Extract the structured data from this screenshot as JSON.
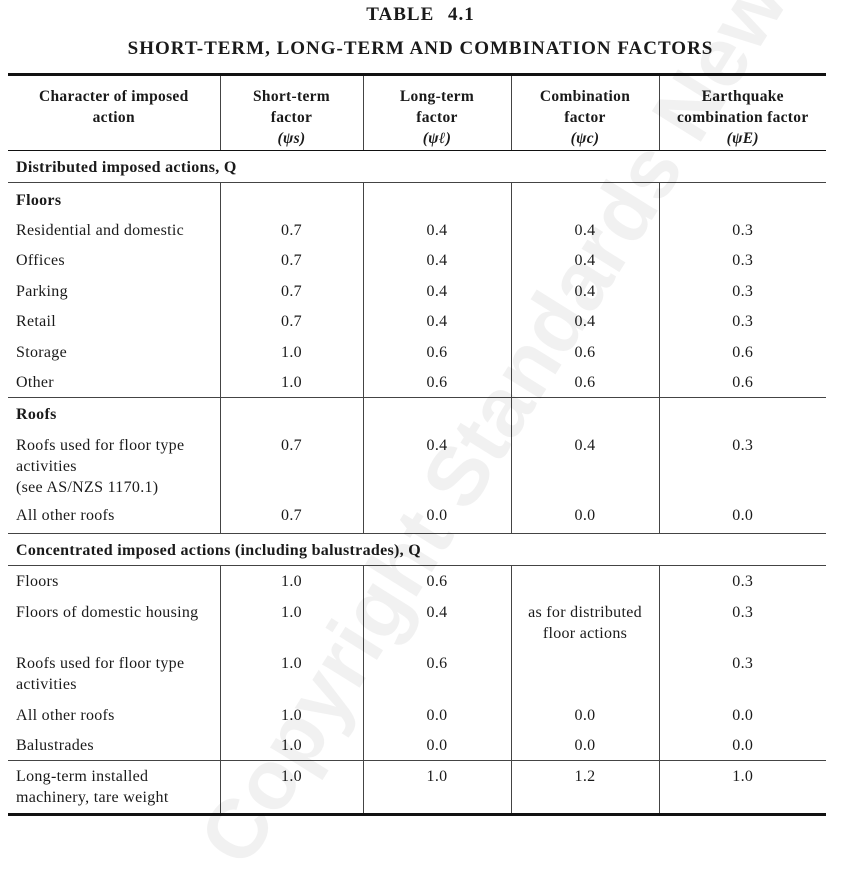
{
  "table_label": "TABLE 4.1",
  "title": "SHORT-TERM, LONG-TERM AND COMBINATION FACTORS",
  "headers": [
    {
      "line1": "Character of imposed",
      "line2": "action",
      "line3": ""
    },
    {
      "line1": "Short-term",
      "line2": "factor",
      "line3": "(ψs)"
    },
    {
      "line1": "Long-term",
      "line2": "factor",
      "line3": "(ψℓ)"
    },
    {
      "line1": "Combination",
      "line2": "factor",
      "line3": "(ψc)"
    },
    {
      "line1": "Earthquake",
      "line2": "combination factor",
      "line3": "(ψE)"
    }
  ],
  "sections": {
    "distributed": "Distributed imposed actions, Q",
    "concentrated": "Concentrated imposed actions (including balustrades), Q"
  },
  "groups": {
    "floors": "Floors",
    "roofs": "Roofs"
  },
  "rows": {
    "residential": {
      "label": "Residential and domestic",
      "s": "0.7",
      "l": "0.4",
      "c": "0.4",
      "e": "0.3"
    },
    "offices": {
      "label": "Offices",
      "s": "0.7",
      "l": "0.4",
      "c": "0.4",
      "e": "0.3"
    },
    "parking": {
      "label": "Parking",
      "s": "0.7",
      "l": "0.4",
      "c": "0.4",
      "e": "0.3"
    },
    "retail": {
      "label": "Retail",
      "s": "0.7",
      "l": "0.4",
      "c": "0.4",
      "e": "0.3"
    },
    "storage": {
      "label": "Storage",
      "s": "1.0",
      "l": "0.6",
      "c": "0.6",
      "e": "0.6"
    },
    "other": {
      "label": "Other",
      "s": "1.0",
      "l": "0.6",
      "c": "0.6",
      "e": "0.6"
    },
    "roofs_floor": {
      "label": "Roofs used for floor type activities",
      "label2": "(see AS/NZS 1170.1)",
      "s": "0.7",
      "l": "0.4",
      "c": "0.4",
      "e": "0.3"
    },
    "roofs_other": {
      "label": "All other roofs",
      "s": "0.7",
      "l": "0.0",
      "c": "0.0",
      "e": "0.0"
    },
    "c_floors": {
      "label": "Floors",
      "s": "1.0",
      "l": "0.6",
      "e": "0.3"
    },
    "c_domestic": {
      "label": "Floors of domestic housing",
      "s": "1.0",
      "l": "0.4",
      "e": "0.3"
    },
    "c_roofs_floor": {
      "label": "Roofs used for floor type activities",
      "s": "1.0",
      "l": "0.6",
      "e": "0.3"
    },
    "c_combination_note": "as for distributed floor actions",
    "c_roofs_other": {
      "label": "All other roofs",
      "s": "1.0",
      "l": "0.0",
      "c": "0.0",
      "e": "0.0"
    },
    "c_balustrades": {
      "label": "Balustrades",
      "s": "1.0",
      "l": "0.0",
      "c": "0.0",
      "e": "0.0"
    },
    "machinery": {
      "label": "Long-term installed machinery, tare weight",
      "s": "1.0",
      "l": "1.0",
      "c": "1.2",
      "e": "1.0"
    }
  },
  "watermark": "Copyright Standards New Zealand"
}
